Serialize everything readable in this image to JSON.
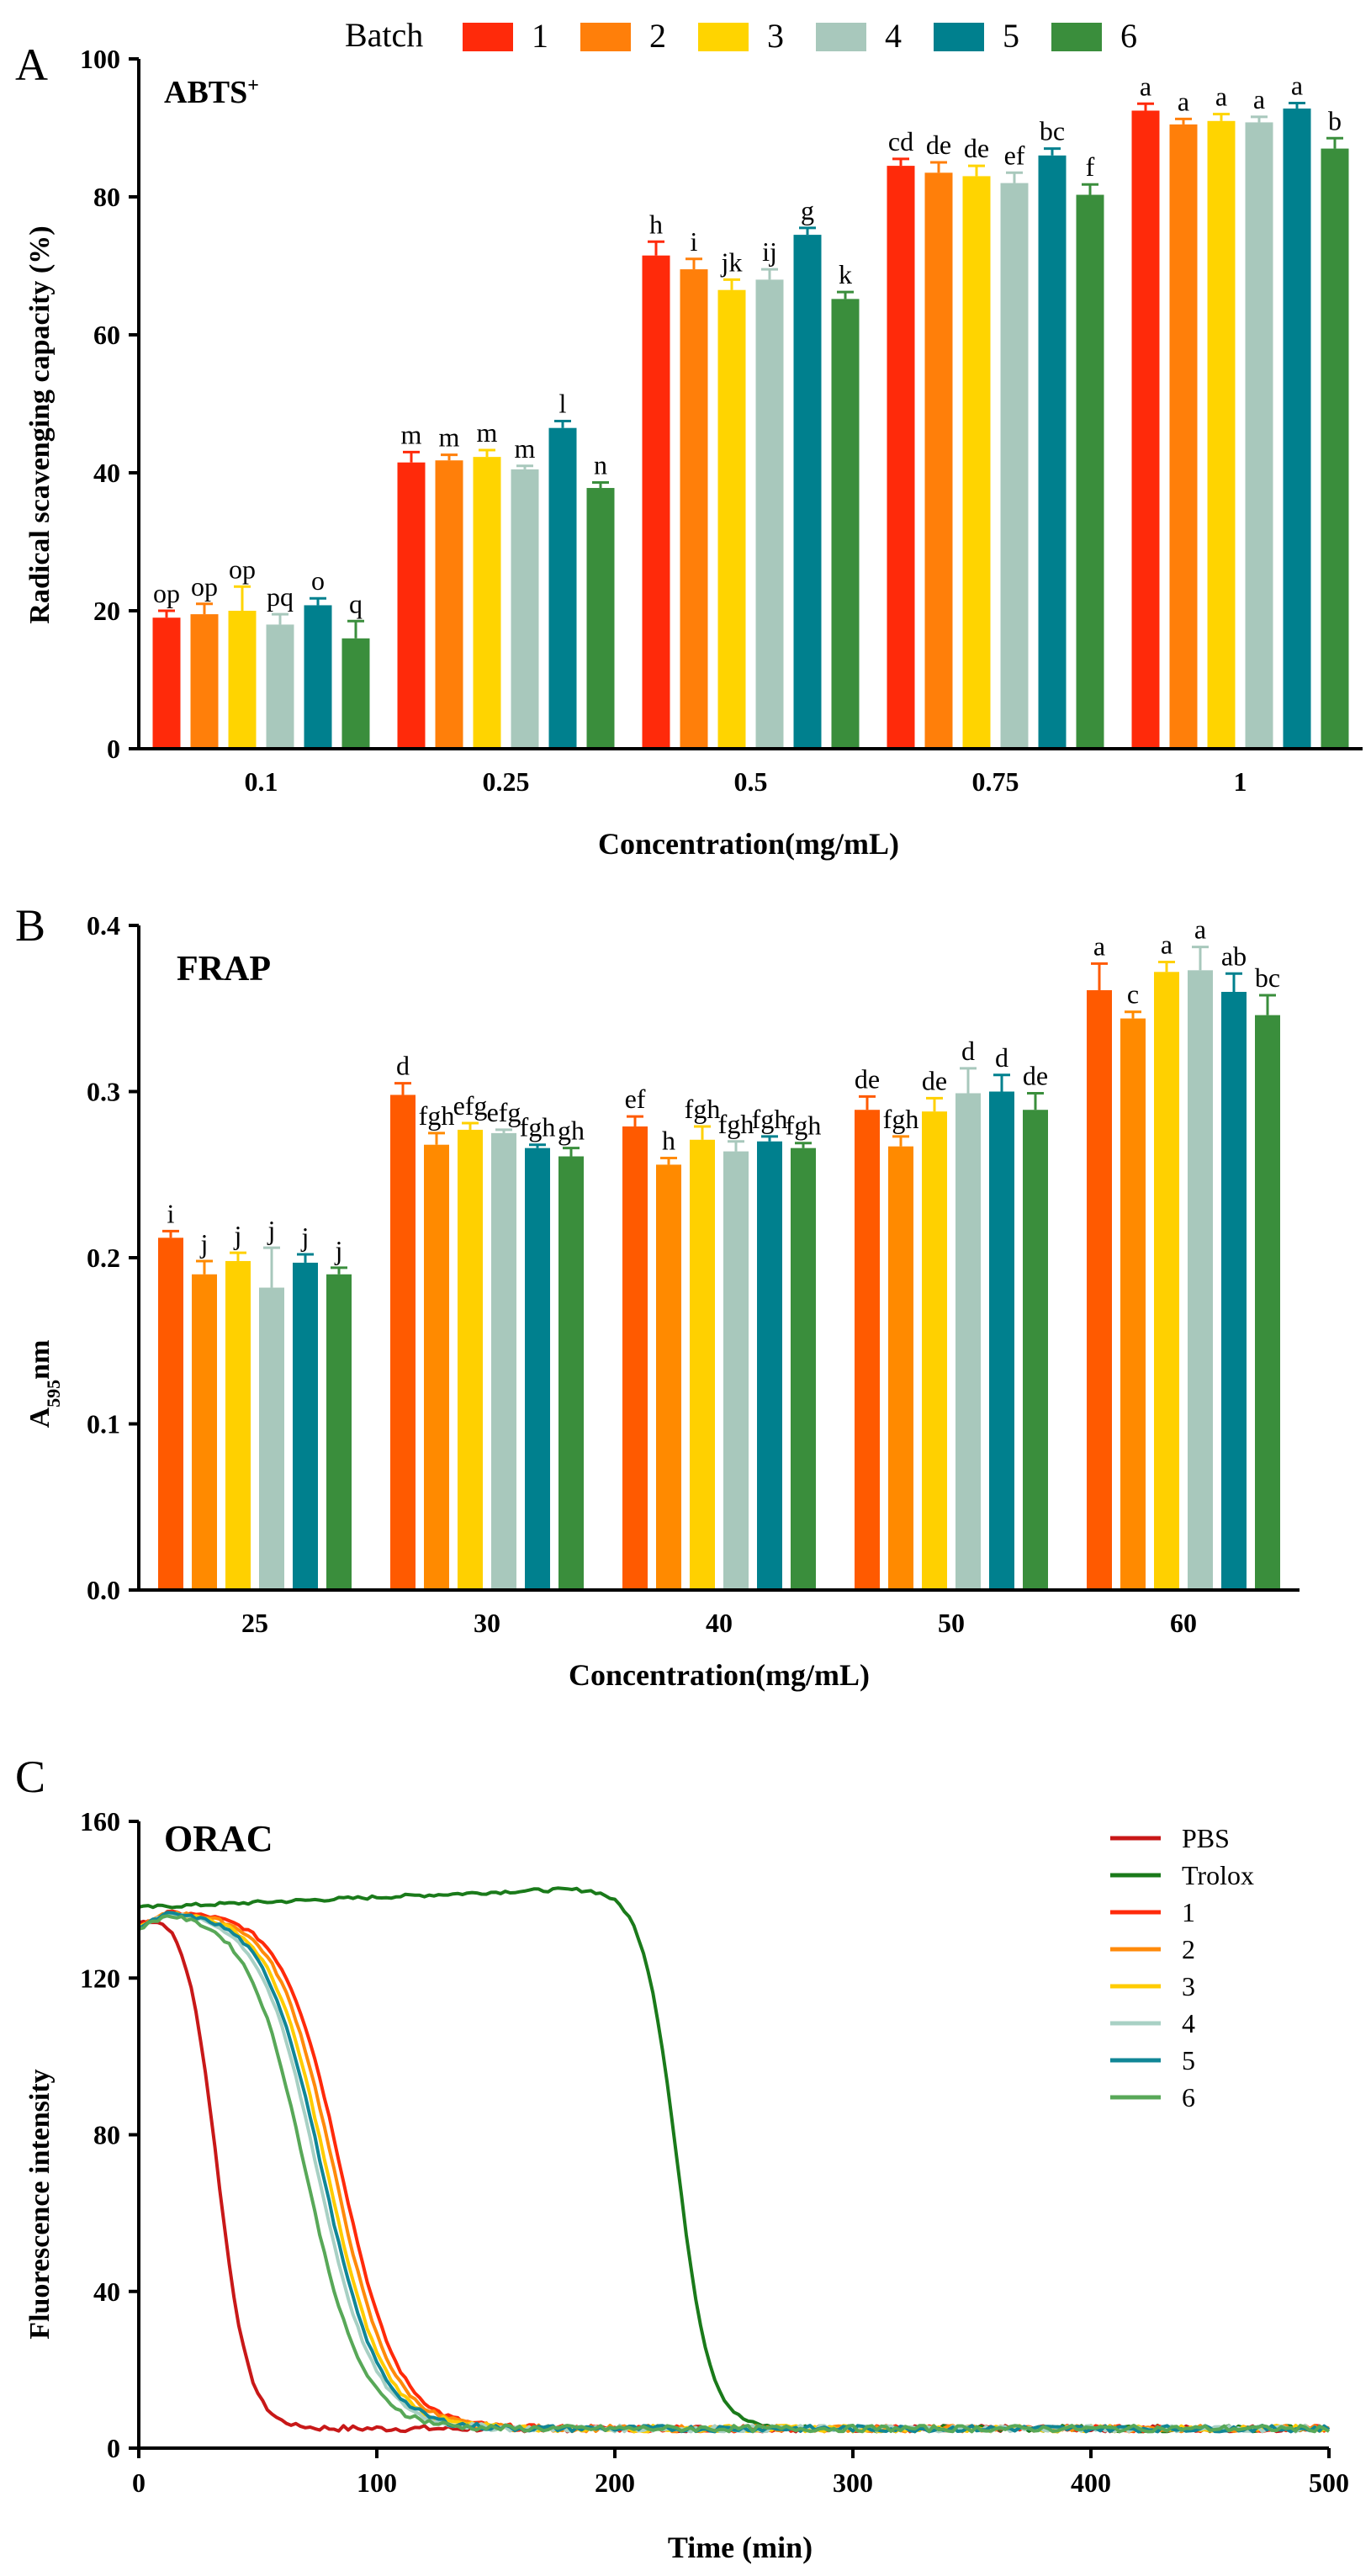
{
  "legend_title": "Batch",
  "colors": {
    "batch": [
      "#ff2a0a",
      "#ff7f0a",
      "#ffd400",
      "#a8c8bc",
      "#00808e",
      "#3a8e3c"
    ],
    "batch_frap": [
      "#ff5a00",
      "#ff8a00",
      "#ffd000",
      "#a8c8bc",
      "#00808e",
      "#3a8e3c"
    ],
    "pbs": "#c81818",
    "trolox": "#1a7a1a",
    "curves": [
      "#ff2a0a",
      "#ff8a0a",
      "#ffcc00",
      "#a8d0c4",
      "#108696",
      "#58a858"
    ]
  },
  "chart_data": [
    {
      "panel": "A",
      "type": "bar",
      "title": "ABTS",
      "title_sup": "+",
      "xlabel": "Concentration(mg/mL)",
      "ylabel": "Radical scavenging capacity (%)",
      "ylim": [
        0,
        100
      ],
      "yticks": [
        "0",
        "20",
        "40",
        "60",
        "80",
        "100"
      ],
      "categories": [
        "0.1",
        "0.25",
        "0.5",
        "0.75",
        "1"
      ],
      "series": [
        {
          "name": "1",
          "values": [
            19,
            41.5,
            71.5,
            84.5,
            92.5
          ],
          "errors": [
            1,
            1.5,
            2,
            1,
            1
          ],
          "letters": [
            "op",
            "m",
            "h",
            "cd",
            "a"
          ]
        },
        {
          "name": "2",
          "values": [
            19.5,
            41.8,
            69.5,
            83.5,
            90.5
          ],
          "errors": [
            1.5,
            0.8,
            1.5,
            1.5,
            0.8
          ],
          "letters": [
            "op",
            "m",
            "i",
            "de",
            "a"
          ]
        },
        {
          "name": "3",
          "values": [
            20,
            42.3,
            66.5,
            83,
            91
          ],
          "errors": [
            3.5,
            1,
            1.5,
            1.5,
            1
          ],
          "letters": [
            "op",
            "m",
            "jk",
            "de",
            "a"
          ]
        },
        {
          "name": "4",
          "values": [
            18,
            40.5,
            68,
            82,
            90.8
          ],
          "errors": [
            1.5,
            0.5,
            1.5,
            1.5,
            0.8
          ],
          "letters": [
            "pq",
            "m",
            "ij",
            "ef",
            "a"
          ]
        },
        {
          "name": "5",
          "values": [
            20.8,
            46.5,
            74.5,
            86,
            92.8
          ],
          "errors": [
            1,
            1,
            1,
            1,
            0.8
          ],
          "letters": [
            "o",
            "l",
            "g",
            "bc",
            "a"
          ]
        },
        {
          "name": "6",
          "values": [
            16,
            37.8,
            65.2,
            80.3,
            87
          ],
          "errors": [
            2.5,
            0.8,
            1,
            1.5,
            1.5
          ],
          "letters": [
            "q",
            "n",
            "k",
            "f",
            "b"
          ]
        }
      ]
    },
    {
      "panel": "B",
      "type": "bar",
      "title": "FRAP",
      "xlabel": "Concentration(mg/mL)",
      "ylabel_main": "A",
      "ylabel_sub": "595",
      "ylabel_suffix": "nm",
      "ylim": [
        0,
        0.4
      ],
      "yticks": [
        "0.0",
        "0.1",
        "0.2",
        "0.3",
        "0.4"
      ],
      "categories": [
        "25",
        "30",
        "40",
        "50",
        "60"
      ],
      "series": [
        {
          "name": "1",
          "values": [
            0.212,
            0.298,
            0.279,
            0.289,
            0.361
          ],
          "errors": [
            0.004,
            0.007,
            0.006,
            0.008,
            0.016
          ],
          "letters": [
            "i",
            "d",
            "ef",
            "de",
            "a"
          ]
        },
        {
          "name": "2",
          "values": [
            0.19,
            0.268,
            0.256,
            0.267,
            0.344
          ],
          "errors": [
            0.008,
            0.007,
            0.004,
            0.006,
            0.004
          ],
          "letters": [
            "j",
            "fgh",
            "h",
            "fgh",
            "c"
          ]
        },
        {
          "name": "3",
          "values": [
            0.198,
            0.277,
            0.271,
            0.288,
            0.372
          ],
          "errors": [
            0.005,
            0.004,
            0.008,
            0.008,
            0.006
          ],
          "letters": [
            "j",
            "efg",
            "fgh",
            "de",
            "a"
          ]
        },
        {
          "name": "4",
          "values": [
            0.182,
            0.275,
            0.264,
            0.299,
            0.373
          ],
          "errors": [
            0.024,
            0.002,
            0.006,
            0.015,
            0.014
          ],
          "letters": [
            "j",
            "efg",
            "fgh",
            "d",
            "a"
          ]
        },
        {
          "name": "5",
          "values": [
            0.197,
            0.266,
            0.27,
            0.3,
            0.36
          ],
          "errors": [
            0.005,
            0.002,
            0.003,
            0.01,
            0.011
          ],
          "letters": [
            "j",
            "fgh",
            "fgh",
            "d",
            "ab"
          ]
        },
        {
          "name": "6",
          "values": [
            0.19,
            0.261,
            0.266,
            0.289,
            0.346
          ],
          "errors": [
            0.004,
            0.005,
            0.003,
            0.01,
            0.012
          ],
          "letters": [
            "j",
            "gh",
            "fgh",
            "de",
            "bc"
          ]
        }
      ]
    },
    {
      "panel": "C",
      "type": "line",
      "title": "ORAC",
      "xlabel": "Time (min)",
      "ylabel": "Fluorescence intensity",
      "xlim": [
        0,
        500
      ],
      "ylim": [
        0,
        160
      ],
      "xticks": [
        "0",
        "100",
        "200",
        "300",
        "400",
        "500"
      ],
      "yticks": [
        "0",
        "40",
        "80",
        "120",
        "160"
      ],
      "series": [
        {
          "name": "PBS",
          "start": 135,
          "plateau": 138,
          "floor": 5,
          "midpoint": 33,
          "width": 6.5
        },
        {
          "name": "Trolox",
          "start": 138,
          "plateau": 143,
          "floor": 5,
          "midpoint": 226,
          "width": 7
        },
        {
          "name": "1",
          "start": 133,
          "plateau": 137,
          "floor": 5,
          "midpoint": 85,
          "width": 12
        },
        {
          "name": "2",
          "start": 133,
          "plateau": 137,
          "floor": 5,
          "midpoint": 82,
          "width": 12
        },
        {
          "name": "3",
          "start": 133,
          "plateau": 137,
          "floor": 5,
          "midpoint": 79,
          "width": 12
        },
        {
          "name": "4",
          "start": 133,
          "plateau": 137,
          "floor": 5,
          "midpoint": 75,
          "width": 12
        },
        {
          "name": "5",
          "start": 133,
          "plateau": 137,
          "floor": 5,
          "midpoint": 77,
          "width": 12
        },
        {
          "name": "6",
          "start": 133,
          "plateau": 137,
          "floor": 5,
          "midpoint": 70,
          "width": 12
        }
      ]
    }
  ]
}
